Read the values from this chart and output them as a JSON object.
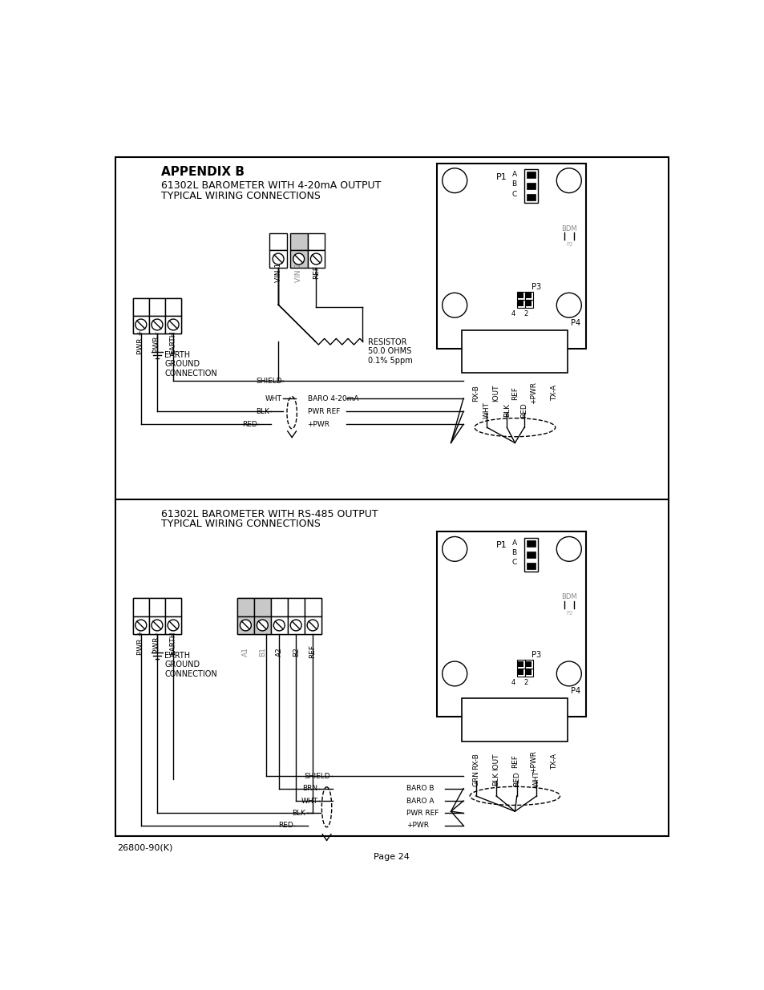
{
  "title_appendix": "APPENDIX B",
  "title_top_line1": "61302L BAROMETER WITH 4-20mA OUTPUT",
  "title_top_line2": "TYPICAL WIRING CONNECTIONS",
  "title_bot_line1": "61302L BAROMETER WITH RS-485 OUTPUT",
  "title_bot_line2": "TYPICAL WIRING CONNECTIONS",
  "footer_left": "26800-90(K)",
  "footer_center": "Page 24",
  "bg_color": "#ffffff",
  "lc": "#000000",
  "resistor_text": "RESISTOR\n50.0 OHMS\n0.1% 5ppm"
}
